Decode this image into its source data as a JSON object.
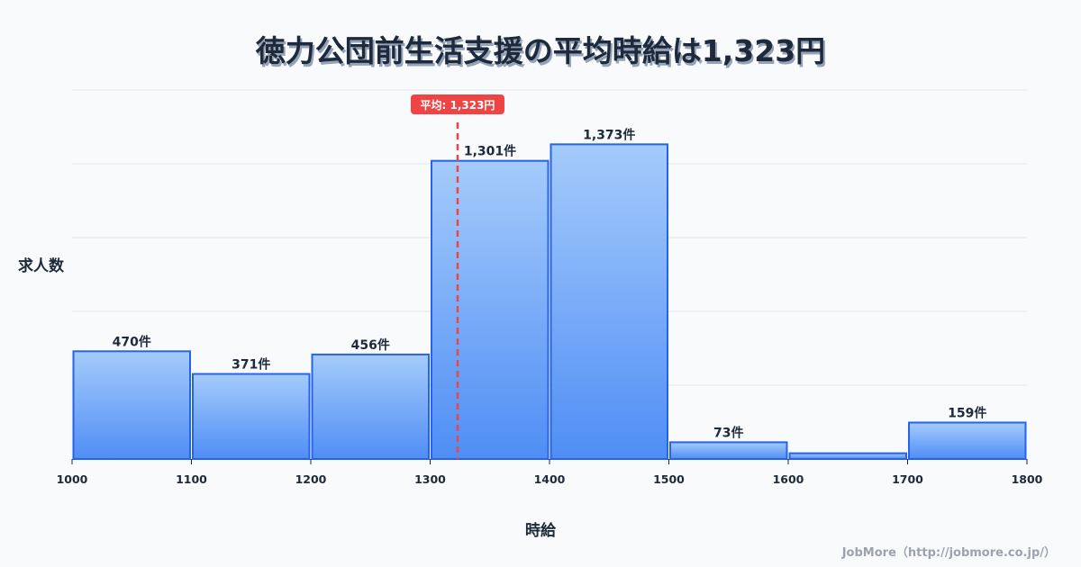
{
  "title": "徳力公団前生活支援の平均時給は1,323円",
  "y_axis_label": "求人数",
  "x_axis_label": "時給",
  "credit": "JobMore（http://jobmore.co.jp/）",
  "mean_label": "平均: 1,323円",
  "colors": {
    "bar_top": "#a5cbfb",
    "bar_bottom": "#4f8ef5",
    "bar_stroke": "#2563eb",
    "mean_line": "#ef4444",
    "grid": "#e2e8f0",
    "text": "#1e293b"
  },
  "chart_data": {
    "type": "bar",
    "title": "徳力公団前生活支援の平均時給は1,323円",
    "xlabel": "時給",
    "ylabel": "求人数",
    "bin_edges": [
      1000,
      1100,
      1200,
      1300,
      1400,
      1500,
      1600,
      1700,
      1800
    ],
    "categories": [
      "1000-1100",
      "1100-1200",
      "1200-1300",
      "1300-1400",
      "1400-1500",
      "1500-1600",
      "1600-1700",
      "1700-1800"
    ],
    "values": [
      470,
      371,
      456,
      1301,
      1373,
      73,
      25,
      159
    ],
    "value_labels": [
      "470件",
      "371件",
      "456件",
      "1,301件",
      "1,373件",
      "73件",
      "",
      "159件"
    ],
    "x_ticks": [
      "1000",
      "1100",
      "1200",
      "1300",
      "1400",
      "1500",
      "1600",
      "1700",
      "1800"
    ],
    "xlim": [
      1000,
      1800
    ],
    "ylim": [
      0,
      1610
    ],
    "grid": true,
    "mean": 1323,
    "mean_annotation": "平均: 1,323円",
    "legend": null
  }
}
